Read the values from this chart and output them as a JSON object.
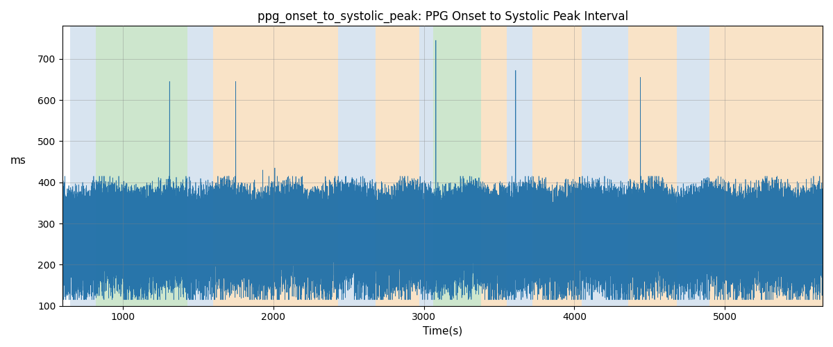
{
  "title": "ppg_onset_to_systolic_peak: PPG Onset to Systolic Peak Interval",
  "xlabel": "Time(s)",
  "ylabel": "ms",
  "ylim": [
    100,
    780
  ],
  "xlim": [
    600,
    5650
  ],
  "grid": true,
  "line_color": "#1f6fa8",
  "regions": [
    {
      "start": 650,
      "end": 820,
      "color": "#aac4de",
      "alpha": 0.45
    },
    {
      "start": 820,
      "end": 1430,
      "color": "#90c990",
      "alpha": 0.45
    },
    {
      "start": 1430,
      "end": 1600,
      "color": "#aac4de",
      "alpha": 0.45
    },
    {
      "start": 1600,
      "end": 2430,
      "color": "#f5c990",
      "alpha": 0.5
    },
    {
      "start": 2430,
      "end": 2680,
      "color": "#aac4de",
      "alpha": 0.45
    },
    {
      "start": 2680,
      "end": 2970,
      "color": "#f5c990",
      "alpha": 0.5
    },
    {
      "start": 2970,
      "end": 3060,
      "color": "#aac4de",
      "alpha": 0.45
    },
    {
      "start": 3060,
      "end": 3380,
      "color": "#90c990",
      "alpha": 0.45
    },
    {
      "start": 3380,
      "end": 3550,
      "color": "#f5c990",
      "alpha": 0.5
    },
    {
      "start": 3550,
      "end": 3720,
      "color": "#aac4de",
      "alpha": 0.45
    },
    {
      "start": 3720,
      "end": 4050,
      "color": "#f5c990",
      "alpha": 0.5
    },
    {
      "start": 4050,
      "end": 4360,
      "color": "#aac4de",
      "alpha": 0.45
    },
    {
      "start": 4360,
      "end": 4680,
      "color": "#f5c990",
      "alpha": 0.5
    },
    {
      "start": 4680,
      "end": 4900,
      "color": "#aac4de",
      "alpha": 0.45
    },
    {
      "start": 4900,
      "end": 5650,
      "color": "#f5c990",
      "alpha": 0.5
    }
  ],
  "seed": 12345,
  "n_points": 8000,
  "t_start": 600,
  "t_end": 5650,
  "spike_positions": [
    1310,
    1750,
    3080,
    3610,
    4440
  ],
  "spike_values": [
    645,
    645,
    745,
    672,
    655
  ],
  "mini_spikes": [
    1930,
    1970,
    2010
  ],
  "mini_values": [
    430,
    415,
    435
  ]
}
